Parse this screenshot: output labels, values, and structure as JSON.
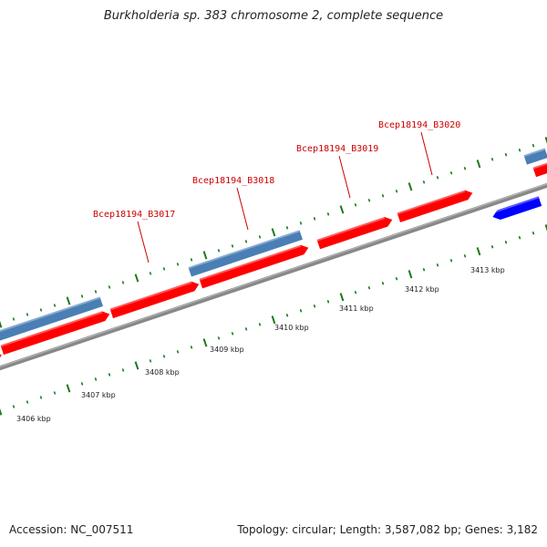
{
  "title": "Burkholderia sp. 383 chromosome 2, complete sequence",
  "footer": {
    "accession": "Accession: NC_007511",
    "summary": "Topology: circular; Length: 3,587,082 bp; Genes: 3,182"
  },
  "colors": {
    "forward_gene": "#ff0000",
    "reverse_gene_blue": "#4a7fb5",
    "reverse_gene_dark_blue": "#0000ff",
    "backbone": "#888888",
    "tick": "#1a7a1a",
    "label": "#cc0000"
  },
  "scale_labels": [
    "3406 kbp",
    "3407 kbp",
    "3408 kbp",
    "3409 kbp",
    "3410 kbp",
    "3411 kbp",
    "3412 kbp",
    "3413 kbp"
  ],
  "gene_labels": [
    "Bcep18194_B3017",
    "Bcep18194_B3018",
    "Bcep18194_B3019",
    "Bcep18194_B3020"
  ]
}
